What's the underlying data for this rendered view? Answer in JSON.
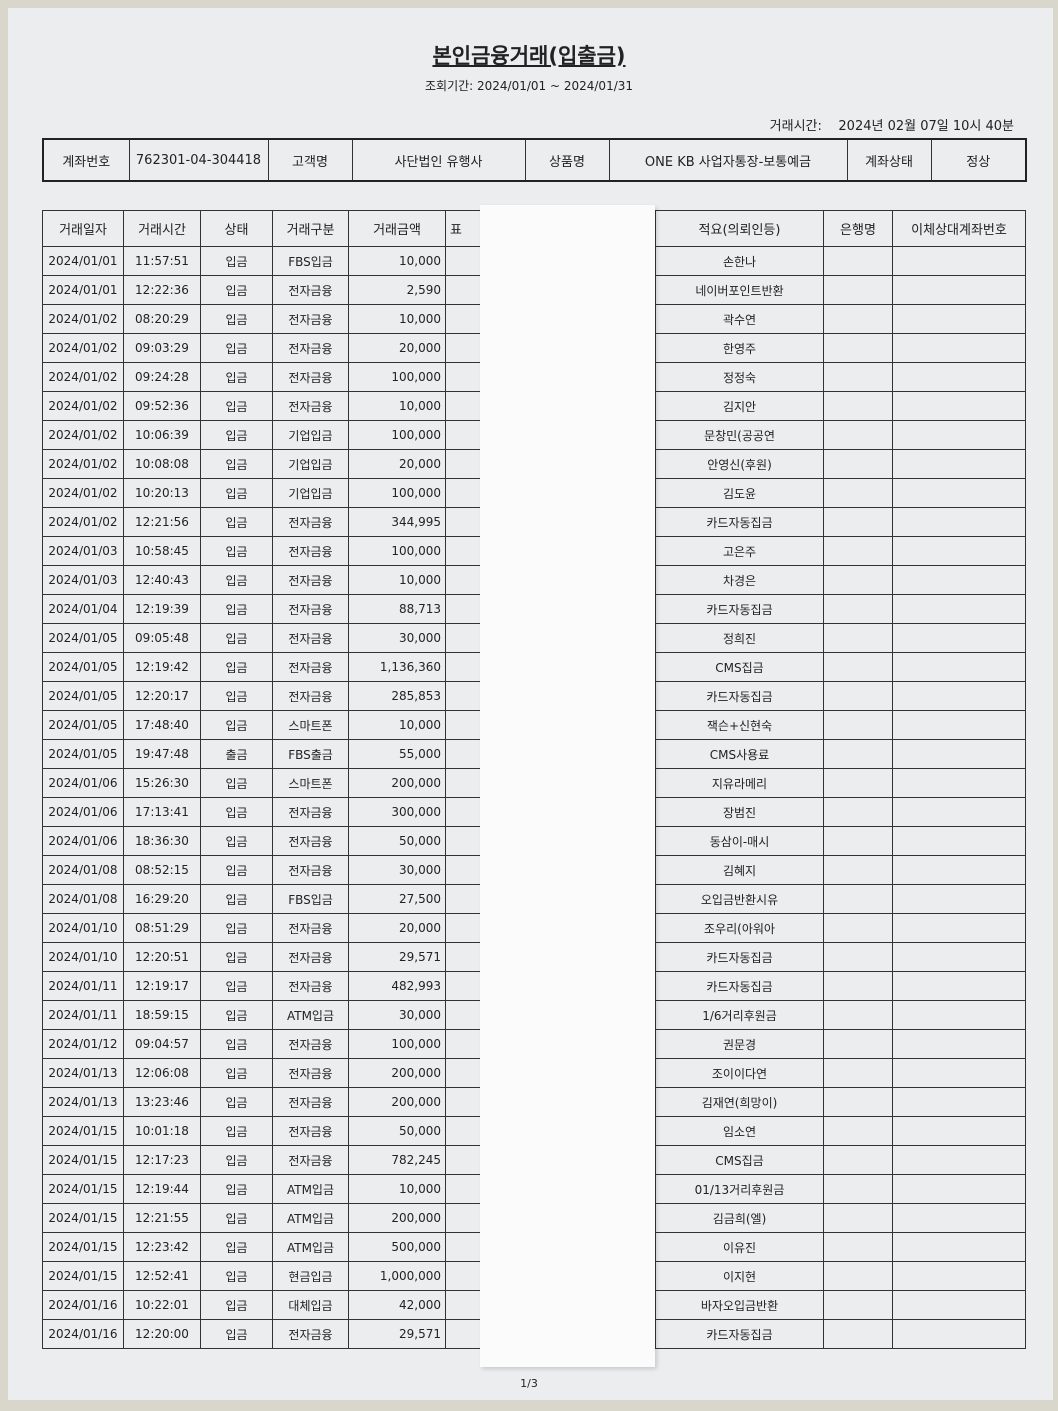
{
  "header": {
    "title": "본인금융거래(입출금)",
    "period": "조회기간: 2024/01/01  ~  2024/01/31",
    "printed_at": "거래시간:    2024년 02월 07일 10시 40분"
  },
  "account_info": [
    {
      "label": "계좌번호",
      "value": "762301-04-304418"
    },
    {
      "label": "고객명",
      "value": "사단법인 유행사"
    },
    {
      "label": "상품명",
      "value": "ONE KB 사업자통장-보통예금"
    },
    {
      "label": "계좌상태",
      "value": "정상"
    }
  ],
  "table": {
    "columns": [
      "거래일자",
      "거래시간",
      "상태",
      "거래구분",
      "거래금액",
      "표",
      "적요(의뢰인등)",
      "은행명",
      "이체상대계좌번호"
    ],
    "rows": [
      [
        "2024/01/01",
        "11:57:51",
        "입금",
        "FBS입금",
        "10,000",
        "손한나",
        "",
        ""
      ],
      [
        "2024/01/01",
        "12:22:36",
        "입금",
        "전자금융",
        "2,590",
        "네이버포인트반환",
        "",
        ""
      ],
      [
        "2024/01/02",
        "08:20:29",
        "입금",
        "전자금융",
        "10,000",
        "곽수연",
        "",
        ""
      ],
      [
        "2024/01/02",
        "09:03:29",
        "입금",
        "전자금융",
        "20,000",
        "한영주",
        "",
        ""
      ],
      [
        "2024/01/02",
        "09:24:28",
        "입금",
        "전자금융",
        "100,000",
        "정정숙",
        "",
        ""
      ],
      [
        "2024/01/02",
        "09:52:36",
        "입금",
        "전자금융",
        "10,000",
        "김지안",
        "",
        ""
      ],
      [
        "2024/01/02",
        "10:06:39",
        "입금",
        "기업입금",
        "100,000",
        "문창민(공공연",
        "",
        ""
      ],
      [
        "2024/01/02",
        "10:08:08",
        "입금",
        "기업입금",
        "20,000",
        "안영신(후원)",
        "",
        ""
      ],
      [
        "2024/01/02",
        "10:20:13",
        "입금",
        "기업입금",
        "100,000",
        "김도윤",
        "",
        ""
      ],
      [
        "2024/01/02",
        "12:21:56",
        "입금",
        "전자금융",
        "344,995",
        "카드자동집금",
        "",
        ""
      ],
      [
        "2024/01/03",
        "10:58:45",
        "입금",
        "전자금융",
        "100,000",
        "고은주",
        "",
        ""
      ],
      [
        "2024/01/03",
        "12:40:43",
        "입금",
        "전자금융",
        "10,000",
        "차경은",
        "",
        ""
      ],
      [
        "2024/01/04",
        "12:19:39",
        "입금",
        "전자금융",
        "88,713",
        "카드자동집금",
        "",
        ""
      ],
      [
        "2024/01/05",
        "09:05:48",
        "입금",
        "전자금융",
        "30,000",
        "정희진",
        "",
        ""
      ],
      [
        "2024/01/05",
        "12:19:42",
        "입금",
        "전자금융",
        "1,136,360",
        "CMS집금",
        "",
        ""
      ],
      [
        "2024/01/05",
        "12:20:17",
        "입금",
        "전자금융",
        "285,853",
        "카드자동집금",
        "",
        ""
      ],
      [
        "2024/01/05",
        "17:48:40",
        "입금",
        "스마트폰",
        "10,000",
        "잭슨+신현숙",
        "",
        ""
      ],
      [
        "2024/01/05",
        "19:47:48",
        "출금",
        "FBS출금",
        "55,000",
        "CMS사용료",
        "",
        ""
      ],
      [
        "2024/01/06",
        "15:26:30",
        "입금",
        "스마트폰",
        "200,000",
        "지유라메리",
        "",
        ""
      ],
      [
        "2024/01/06",
        "17:13:41",
        "입금",
        "전자금융",
        "300,000",
        "장범진",
        "",
        ""
      ],
      [
        "2024/01/06",
        "18:36:30",
        "입금",
        "전자금융",
        "50,000",
        "동삼이-매시",
        "",
        ""
      ],
      [
        "2024/01/08",
        "08:52:15",
        "입금",
        "전자금융",
        "30,000",
        "김혜지",
        "",
        ""
      ],
      [
        "2024/01/08",
        "16:29:20",
        "입금",
        "FBS입금",
        "27,500",
        "오입금반환시유",
        "",
        ""
      ],
      [
        "2024/01/10",
        "08:51:29",
        "입금",
        "전자금융",
        "20,000",
        "조우리(아워아",
        "",
        ""
      ],
      [
        "2024/01/10",
        "12:20:51",
        "입금",
        "전자금융",
        "29,571",
        "카드자동집금",
        "",
        ""
      ],
      [
        "2024/01/11",
        "12:19:17",
        "입금",
        "전자금융",
        "482,993",
        "카드자동집금",
        "",
        ""
      ],
      [
        "2024/01/11",
        "18:59:15",
        "입금",
        "ATM입금",
        "30,000",
        "1/6거리후원금",
        "",
        ""
      ],
      [
        "2024/01/12",
        "09:04:57",
        "입금",
        "전자금융",
        "100,000",
        "권문경",
        "",
        ""
      ],
      [
        "2024/01/13",
        "12:06:08",
        "입금",
        "전자금융",
        "200,000",
        "조이이다연",
        "",
        ""
      ],
      [
        "2024/01/13",
        "13:23:46",
        "입금",
        "전자금융",
        "200,000",
        "김재연(희망이)",
        "",
        ""
      ],
      [
        "2024/01/15",
        "10:01:18",
        "입금",
        "전자금융",
        "50,000",
        "임소연",
        "",
        ""
      ],
      [
        "2024/01/15",
        "12:17:23",
        "입금",
        "전자금융",
        "782,245",
        "CMS집금",
        "",
        ""
      ],
      [
        "2024/01/15",
        "12:19:44",
        "입금",
        "ATM입금",
        "10,000",
        "01/13거리후원금",
        "",
        ""
      ],
      [
        "2024/01/15",
        "12:21:55",
        "입금",
        "ATM입금",
        "200,000",
        "김금희(엘)",
        "",
        ""
      ],
      [
        "2024/01/15",
        "12:23:42",
        "입금",
        "ATM입금",
        "500,000",
        "이유진",
        "",
        ""
      ],
      [
        "2024/01/15",
        "12:52:41",
        "입금",
        "현금입금",
        "1,000,000",
        "이지현",
        "",
        ""
      ],
      [
        "2024/01/16",
        "10:22:01",
        "입금",
        "대체입금",
        "42,000",
        "바자오입금반환",
        "",
        ""
      ],
      [
        "2024/01/16",
        "12:20:00",
        "입금",
        "전자금융",
        "29,571",
        "카드자동집금",
        "",
        ""
      ]
    ]
  },
  "footer": {
    "page": "1/3"
  }
}
